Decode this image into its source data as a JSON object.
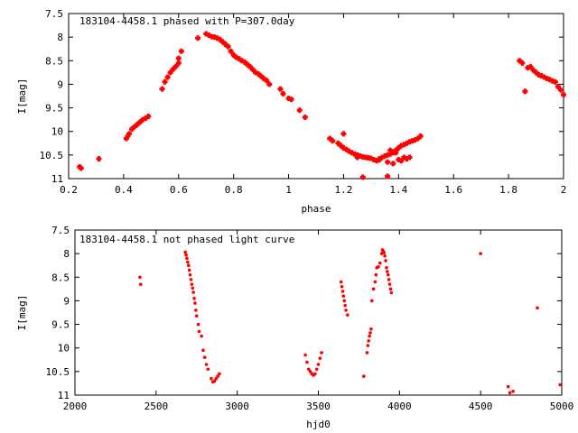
{
  "chart_data": [
    {
      "type": "scatter",
      "title": "183104-4458.1 phased with P=307.0day",
      "xlabel": "phase",
      "ylabel": "I[mag]",
      "xlim": [
        0.2,
        2.0
      ],
      "ylim": [
        11,
        7.5
      ],
      "y_inverted": true,
      "x_ticks": [
        "0.2",
        "0.4",
        "0.6",
        "0.8",
        "1",
        "1.2",
        "1.4",
        "1.6",
        "1.8",
        "2"
      ],
      "y_ticks": [
        "7.5",
        "8",
        "8.5",
        "9",
        "9.5",
        "10",
        "10.5",
        "11"
      ],
      "marker_color": "#ff0000",
      "series": [
        {
          "x": [
            0.24,
            0.245,
            0.31,
            0.41,
            0.415,
            0.42,
            0.43,
            0.44,
            0.45,
            0.46,
            0.47,
            0.48,
            0.49,
            0.54,
            0.55,
            0.56,
            0.57,
            0.58,
            0.59,
            0.6,
            0.6,
            0.61,
            0.67,
            0.7,
            0.71,
            0.72,
            0.73,
            0.74,
            0.75,
            0.76,
            0.77,
            0.78,
            0.79,
            0.8,
            0.81,
            0.82,
            0.83,
            0.84,
            0.85,
            0.86,
            0.87,
            0.88,
            0.89,
            0.9,
            0.91,
            0.92,
            0.93,
            0.97,
            0.98,
            1.0,
            1.01,
            1.04,
            1.06,
            1.15,
            1.16,
            1.18,
            1.19,
            1.2,
            1.21,
            1.22,
            1.23,
            1.24,
            1.25,
            1.26,
            1.27,
            1.28,
            1.29,
            1.3,
            1.31,
            1.32,
            1.33,
            1.34,
            1.35,
            1.36,
            1.37,
            1.38,
            1.39,
            1.4,
            1.41,
            1.42,
            1.43,
            1.44,
            1.45,
            1.46,
            1.47,
            1.48,
            1.2,
            1.25,
            1.33,
            1.36,
            1.38,
            1.4,
            1.42,
            1.37,
            1.39,
            1.41,
            1.43,
            1.44,
            1.27,
            1.36,
            1.84,
            1.85,
            1.86,
            1.87,
            1.88,
            1.89,
            1.9,
            1.91,
            1.92,
            1.93,
            1.94,
            1.95,
            1.96,
            1.97,
            1.98,
            1.99,
            2.0
          ],
          "y": [
            10.75,
            10.78,
            10.58,
            10.15,
            10.1,
            10.05,
            9.95,
            9.9,
            9.85,
            9.8,
            9.75,
            9.72,
            9.68,
            9.1,
            8.95,
            8.85,
            8.75,
            8.68,
            8.62,
            8.55,
            8.45,
            8.3,
            8.02,
            7.93,
            7.96,
            7.99,
            8.0,
            8.02,
            8.05,
            8.1,
            8.15,
            8.2,
            8.3,
            8.38,
            8.43,
            8.46,
            8.5,
            8.53,
            8.58,
            8.63,
            8.69,
            8.75,
            8.78,
            8.83,
            8.88,
            8.92,
            9.0,
            9.1,
            9.2,
            9.3,
            9.32,
            9.55,
            9.7,
            10.15,
            10.2,
            10.25,
            10.3,
            10.35,
            10.38,
            10.42,
            10.45,
            10.48,
            10.5,
            10.52,
            10.54,
            10.55,
            10.56,
            10.57,
            10.6,
            10.62,
            10.58,
            10.55,
            10.52,
            10.5,
            10.48,
            10.45,
            10.4,
            10.35,
            10.3,
            10.28,
            10.25,
            10.22,
            10.2,
            10.18,
            10.15,
            10.1,
            10.05,
            10.55,
            10.6,
            10.65,
            10.68,
            10.6,
            10.55,
            10.4,
            10.45,
            10.62,
            10.58,
            10.55,
            10.97,
            10.95,
            8.5,
            8.55,
            9.15,
            8.65,
            8.63,
            8.7,
            8.75,
            8.8,
            8.82,
            8.85,
            8.88,
            8.9,
            8.93,
            8.95,
            9.05,
            9.12,
            9.22
          ]
        }
      ]
    },
    {
      "type": "scatter",
      "title": "183104-4458.1 not phased light curve",
      "xlabel": "hjd0",
      "ylabel": "I[mag]",
      "xlim": [
        2000,
        5000
      ],
      "ylim": [
        11,
        7.5
      ],
      "y_inverted": true,
      "x_ticks": [
        "2000",
        "2500",
        "3000",
        "3500",
        "4000",
        "4500",
        "5000"
      ],
      "y_ticks": [
        "7.5",
        "8",
        "8.5",
        "9",
        "9.5",
        "10",
        "10.5",
        "11"
      ],
      "marker_color": "#ff0000",
      "series": [
        {
          "x": [
            2400,
            2405,
            2680,
            2685,
            2690,
            2695,
            2700,
            2705,
            2710,
            2715,
            2720,
            2725,
            2730,
            2735,
            2740,
            2745,
            2750,
            2760,
            2765,
            2780,
            2790,
            2800,
            2810,
            2820,
            2840,
            2850,
            2860,
            2870,
            2880,
            2890,
            3420,
            3430,
            3440,
            3450,
            3460,
            3470,
            3480,
            3490,
            3500,
            3510,
            3520,
            3640,
            3645,
            3650,
            3655,
            3660,
            3665,
            3670,
            3680,
            3780,
            3800,
            3805,
            3810,
            3815,
            3820,
            3825,
            3830,
            3840,
            3850,
            3855,
            3860,
            3870,
            3880,
            3890,
            3895,
            3900,
            3905,
            3910,
            3915,
            3920,
            3925,
            3930,
            3935,
            3940,
            3945,
            3950,
            4500,
            4670,
            4680,
            4700,
            4850,
            4990
          ],
          "y": [
            8.5,
            8.65,
            7.97,
            8.03,
            8.1,
            8.18,
            8.25,
            8.35,
            8.45,
            8.55,
            8.65,
            8.73,
            8.82,
            8.95,
            9.05,
            9.2,
            9.32,
            9.5,
            9.65,
            9.75,
            10.05,
            10.2,
            10.35,
            10.45,
            10.65,
            10.72,
            10.7,
            10.65,
            10.6,
            10.55,
            10.15,
            10.3,
            10.45,
            10.5,
            10.55,
            10.58,
            10.55,
            10.45,
            10.35,
            10.22,
            10.1,
            8.6,
            8.7,
            8.8,
            8.9,
            9.0,
            9.1,
            9.2,
            9.3,
            10.6,
            10.1,
            9.95,
            9.85,
            9.75,
            9.68,
            9.6,
            9.0,
            8.75,
            8.6,
            8.45,
            8.3,
            8.28,
            8.2,
            8.0,
            7.92,
            7.95,
            7.98,
            8.05,
            8.15,
            8.3,
            8.38,
            8.45,
            8.55,
            8.65,
            8.75,
            8.83,
            8.0,
            10.82,
            10.95,
            10.92,
            9.15,
            10.78
          ]
        }
      ]
    }
  ]
}
